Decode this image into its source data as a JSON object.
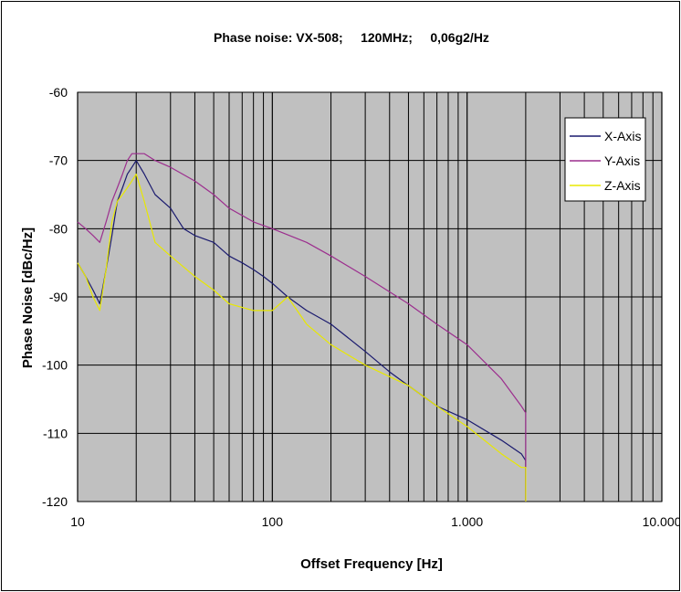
{
  "chart_data": {
    "type": "line",
    "title": "Phase noise: VX-508;     120MHz;     0,06g2/Hz",
    "xlabel": "Offset Frequency [Hz]",
    "ylabel": "Phase Noise [dBc/Hz]",
    "x_scale": "log",
    "xlim": [
      10,
      10000
    ],
    "ylim": [
      -120,
      -60
    ],
    "x_ticks": [
      10,
      100,
      1000,
      10000
    ],
    "x_tick_labels": [
      "10",
      "100",
      "1.000",
      "10.000"
    ],
    "y_ticks": [
      -60,
      -70,
      -80,
      -90,
      -100,
      -110,
      -120
    ],
    "y_tick_labels": [
      "-60",
      "-70",
      "-80",
      "-90",
      "-100",
      "-110",
      "-120"
    ],
    "grid": true,
    "legend_position": "top-right",
    "series": [
      {
        "name": "X-Axis",
        "color": "#1a1a6e",
        "x": [
          10,
          11,
          12,
          13,
          14,
          15,
          16,
          17,
          18,
          19,
          20,
          22,
          25,
          30,
          35,
          40,
          50,
          60,
          70,
          80,
          90,
          100,
          120,
          150,
          200,
          300,
          400,
          500,
          700,
          1000,
          1500,
          1900,
          2000,
          2000
        ],
        "y": [
          -85,
          -87,
          -89,
          -91,
          -86,
          -81,
          -76,
          -74,
          -72,
          -71,
          -70,
          -72,
          -75,
          -77,
          -80,
          -81,
          -82,
          -84,
          -85,
          -86,
          -87,
          -88,
          -90,
          -92,
          -94,
          -98,
          -101,
          -103,
          -106,
          -108,
          -111,
          -113,
          -114,
          -120
        ]
      },
      {
        "name": "Y-Axis",
        "color": "#9c2e8e",
        "x": [
          10,
          11,
          12,
          13,
          14,
          15,
          16,
          17,
          18,
          19,
          20,
          22,
          25,
          30,
          40,
          50,
          60,
          80,
          100,
          150,
          200,
          300,
          500,
          700,
          1000,
          1500,
          1900,
          2000,
          2000
        ],
        "y": [
          -79,
          -80,
          -81,
          -82,
          -79,
          -76,
          -74,
          -72,
          -70,
          -69,
          -69,
          -69,
          -70,
          -71,
          -73,
          -75,
          -77,
          -79,
          -80,
          -82,
          -84,
          -87,
          -91,
          -94,
          -97,
          -102,
          -106,
          -107,
          -120
        ]
      },
      {
        "name": "Z-Axis",
        "color": "#e8e800",
        "x": [
          10,
          11,
          12,
          13,
          14,
          15,
          16,
          17,
          18,
          19,
          20,
          22,
          25,
          30,
          40,
          50,
          60,
          80,
          100,
          120,
          150,
          200,
          300,
          500,
          700,
          1000,
          1500,
          1900,
          2000,
          2000
        ],
        "y": [
          -85,
          -87,
          -90,
          -92,
          -86,
          -79,
          -76,
          -75,
          -74,
          -73,
          -72,
          -76,
          -82,
          -84,
          -87,
          -89,
          -91,
          -92,
          -92,
          -90,
          -94,
          -97,
          -100,
          -103,
          -106,
          -109,
          -113,
          -115,
          -115,
          -120
        ]
      }
    ]
  }
}
